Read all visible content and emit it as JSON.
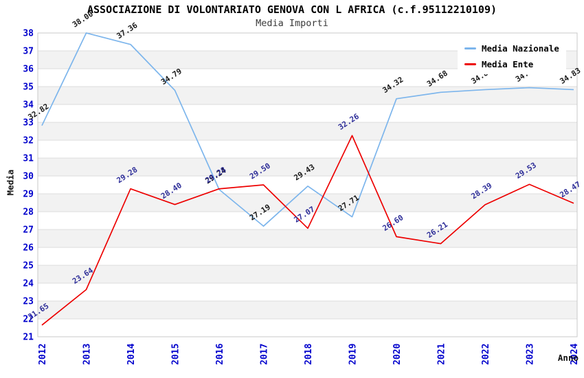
{
  "title": "ASSOCIAZIONE DI VOLONTARIATO GENOVA CON L AFRICA (c.f.95112210109)",
  "subtitle": "Media Importi",
  "legend": [
    {
      "name": "Media Nazionale",
      "color": "#7cb5ec"
    },
    {
      "name": "Media Ente",
      "color": "#ed0000"
    }
  ],
  "colors": {
    "axis_tick_labels": "#0000cc",
    "nazionale_line": "#7cb5ec",
    "ente_line": "#ed0000",
    "nazionale_data_labels": "#1a1a1a",
    "ente_data_labels": "#2f2f99"
  },
  "chart_data": {
    "type": "line",
    "title": "ASSOCIAZIONE DI VOLONTARIATO GENOVA CON L AFRICA (c.f.95112210109)",
    "subtitle": "Media Importi",
    "xlabel": "Anno",
    "ylabel": "Media",
    "x": [
      2012,
      2013,
      2014,
      2015,
      2016,
      2017,
      2018,
      2019,
      2020,
      2021,
      2022,
      2023,
      2024
    ],
    "series": [
      {
        "name": "Media Nazionale",
        "color": "#7cb5ec",
        "label_color": "#1a1a1a",
        "values": [
          32.82,
          38.0,
          37.36,
          34.79,
          29.24,
          27.19,
          29.43,
          27.71,
          34.32,
          34.68,
          34.83,
          34.94,
          34.83
        ]
      },
      {
        "name": "Media Ente",
        "color": "#ed0000",
        "label_color": "#2f2f99",
        "values": [
          21.65,
          23.64,
          29.28,
          28.4,
          29.28,
          29.5,
          27.07,
          32.26,
          26.6,
          26.21,
          28.39,
          29.53,
          28.47
        ]
      }
    ],
    "ylim": [
      21,
      38
    ],
    "ytick_step": 1,
    "grid": "horizontal",
    "plot_bands": "alternating",
    "legend_position": "top-right",
    "data_labels": "rotated, two decimals"
  }
}
